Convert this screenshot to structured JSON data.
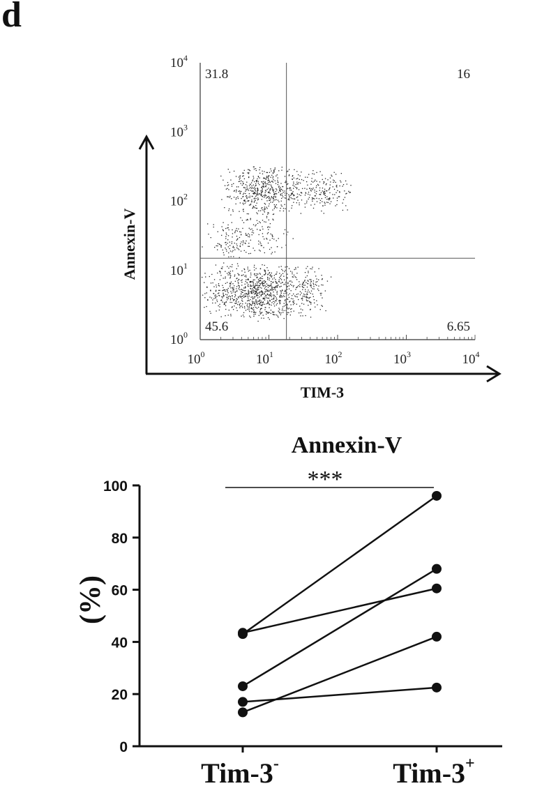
{
  "panel_label": "d",
  "chart_data": [
    {
      "type": "scatter",
      "subtype": "flow-cytometry-quadrant",
      "title": "",
      "xlabel": "TIM-3",
      "ylabel": "Annexin-V",
      "scale": "log",
      "xlim": [
        1,
        10000
      ],
      "ylim": [
        1,
        10000
      ],
      "x_ticks": [
        {
          "base": "10",
          "exp": "0"
        },
        {
          "base": "10",
          "exp": "1"
        },
        {
          "base": "10",
          "exp": "2"
        },
        {
          "base": "10",
          "exp": "3"
        },
        {
          "base": "10",
          "exp": "4"
        }
      ],
      "y_ticks": [
        {
          "base": "10",
          "exp": "0"
        },
        {
          "base": "10",
          "exp": "1"
        },
        {
          "base": "10",
          "exp": "2"
        },
        {
          "base": "10",
          "exp": "3"
        },
        {
          "base": "10",
          "exp": "4"
        }
      ],
      "quadrant_gate": {
        "x": 18,
        "y": 15
      },
      "quadrants": {
        "upper_left": "31.8",
        "upper_right": "16",
        "lower_left": "45.6",
        "lower_right": "6.65"
      },
      "point_clusters": [
        {
          "x_range": [
            1.8,
            40
          ],
          "y_range": [
            60,
            350
          ],
          "count": 520
        },
        {
          "x_range": [
            18,
            170
          ],
          "y_range": [
            60,
            300
          ],
          "count": 180
        },
        {
          "x_range": [
            1,
            45
          ],
          "y_range": [
            1.8,
            14
          ],
          "count": 900
        },
        {
          "x_range": [
            1,
            25
          ],
          "y_range": [
            14,
            70
          ],
          "count": 200
        },
        {
          "x_range": [
            18,
            80
          ],
          "y_range": [
            2,
            14
          ],
          "count": 110
        }
      ]
    },
    {
      "type": "line",
      "subtype": "paired-dot-plot",
      "title": "Annexin-V",
      "xlabel": "",
      "ylabel": "(%)",
      "categories": [
        {
          "label": "Tim-3",
          "sup": "-"
        },
        {
          "label": "Tim-3",
          "sup": "+"
        }
      ],
      "ylim": [
        0,
        100
      ],
      "y_ticks": [
        "0",
        "20",
        "40",
        "60",
        "80",
        "100"
      ],
      "significance": "***",
      "pairs": [
        [
          43,
          96
        ],
        [
          43.5,
          60.5
        ],
        [
          23,
          68
        ],
        [
          17,
          22.5
        ],
        [
          13,
          42
        ]
      ]
    }
  ]
}
